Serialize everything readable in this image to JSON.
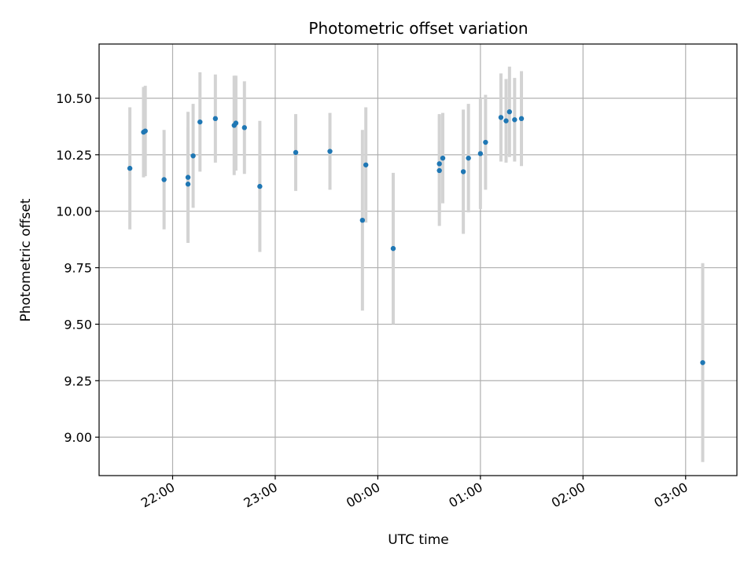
{
  "chart_data": {
    "type": "scatter",
    "title": "Photometric offset variation",
    "xlabel": "UTC time",
    "ylabel": "Photometric offset",
    "xlim": [
      "21:17",
      "03:30"
    ],
    "ylim": [
      8.83,
      10.74
    ],
    "x_ticks": [
      "22:00",
      "23:00",
      "00:00",
      "01:00",
      "02:00",
      "03:00"
    ],
    "y_ticks": [
      "9.00",
      "9.25",
      "9.50",
      "9.75",
      "10.00",
      "10.25",
      "10.50"
    ],
    "grid": true,
    "colors": {
      "point": "#1f77b4",
      "errorbar": "#d3d3d3",
      "grid": "#b0b0b0"
    },
    "points": [
      {
        "x": "21:35",
        "y": 10.19,
        "yerr": 0.27
      },
      {
        "x": "21:43",
        "y": 10.35,
        "yerr": 0.2
      },
      {
        "x": "21:44",
        "y": 10.355,
        "yerr": 0.2
      },
      {
        "x": "21:55",
        "y": 10.14,
        "yerr": 0.22
      },
      {
        "x": "22:09",
        "y": 10.15,
        "yerr": 0.29
      },
      {
        "x": "22:09",
        "y": 10.12,
        "yerr": 0.25
      },
      {
        "x": "22:12",
        "y": 10.245,
        "yerr": 0.23
      },
      {
        "x": "22:16",
        "y": 10.395,
        "yerr": 0.22
      },
      {
        "x": "22:25",
        "y": 10.41,
        "yerr": 0.195
      },
      {
        "x": "22:36",
        "y": 10.38,
        "yerr": 0.22
      },
      {
        "x": "22:37",
        "y": 10.39,
        "yerr": 0.21
      },
      {
        "x": "22:42",
        "y": 10.37,
        "yerr": 0.205
      },
      {
        "x": "22:51",
        "y": 10.11,
        "yerr": 0.29
      },
      {
        "x": "23:12",
        "y": 10.26,
        "yerr": 0.17
      },
      {
        "x": "23:32",
        "y": 10.265,
        "yerr": 0.17
      },
      {
        "x": "23:51",
        "y": 9.96,
        "yerr": 0.4
      },
      {
        "x": "23:53",
        "y": 10.205,
        "yerr": 0.255
      },
      {
        "x": "00:09",
        "y": 9.835,
        "yerr": 0.335
      },
      {
        "x": "00:36",
        "y": 10.21,
        "yerr": 0.22
      },
      {
        "x": "00:36",
        "y": 10.18,
        "yerr": 0.245
      },
      {
        "x": "00:38",
        "y": 10.235,
        "yerr": 0.2
      },
      {
        "x": "00:50",
        "y": 10.175,
        "yerr": 0.275
      },
      {
        "x": "00:53",
        "y": 10.235,
        "yerr": 0.24
      },
      {
        "x": "01:00",
        "y": 10.255,
        "yerr": 0.245
      },
      {
        "x": "01:03",
        "y": 10.305,
        "yerr": 0.21
      },
      {
        "x": "01:12",
        "y": 10.415,
        "yerr": 0.195
      },
      {
        "x": "01:15",
        "y": 10.4,
        "yerr": 0.185
      },
      {
        "x": "01:17",
        "y": 10.44,
        "yerr": 0.2
      },
      {
        "x": "01:20",
        "y": 10.405,
        "yerr": 0.185
      },
      {
        "x": "01:24",
        "y": 10.41,
        "yerr": 0.21
      },
      {
        "x": "03:10",
        "y": 9.33,
        "yerr": 0.44
      }
    ]
  }
}
